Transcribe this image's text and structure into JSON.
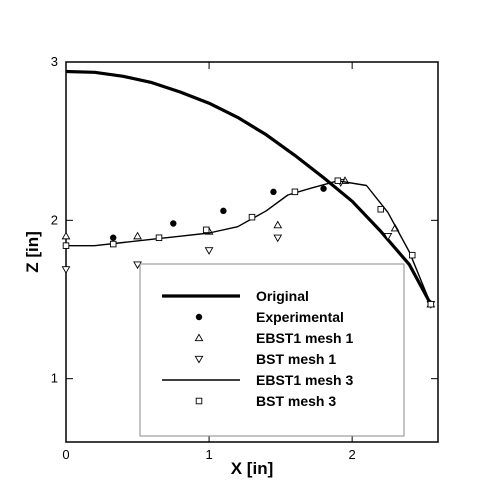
{
  "chart_data": {
    "type": "line",
    "xlabel": "X [in]",
    "ylabel": "Z [in]",
    "xlim": [
      0,
      2.6
    ],
    "ylim": [
      0.6,
      3.0
    ],
    "x_ticks": [
      0,
      1,
      2
    ],
    "y_ticks": [
      1,
      2,
      3
    ],
    "x_tick_labels": [
      "0",
      "1",
      "2"
    ],
    "y_tick_labels": [
      "1",
      "2",
      "3"
    ],
    "grid": false,
    "legend_placement": "lower-center",
    "series": [
      {
        "name": "Original",
        "kind": "line",
        "style": "thick",
        "points": [
          [
            0,
            2.94
          ],
          [
            0.2,
            2.935
          ],
          [
            0.4,
            2.91
          ],
          [
            0.6,
            2.87
          ],
          [
            0.8,
            2.81
          ],
          [
            1.0,
            2.74
          ],
          [
            1.2,
            2.65
          ],
          [
            1.4,
            2.54
          ],
          [
            1.6,
            2.41
          ],
          [
            1.8,
            2.27
          ],
          [
            2.0,
            2.12
          ],
          [
            2.2,
            1.93
          ],
          [
            2.4,
            1.72
          ],
          [
            2.55,
            1.47
          ]
        ]
      },
      {
        "name": "Experimental",
        "kind": "marker",
        "marker": "filled-circle",
        "points": [
          [
            0,
            1.84
          ],
          [
            0.33,
            1.89
          ],
          [
            0.75,
            1.98
          ],
          [
            1.1,
            2.06
          ],
          [
            1.45,
            2.18
          ],
          [
            1.8,
            2.2
          ],
          [
            2.55,
            1.47
          ]
        ]
      },
      {
        "name": "EBST1 mesh 1",
        "kind": "marker",
        "marker": "triangle-up",
        "points": [
          [
            0,
            1.9
          ],
          [
            0.5,
            1.9
          ],
          [
            1.0,
            1.93
          ],
          [
            1.48,
            1.97
          ],
          [
            1.95,
            2.25
          ],
          [
            2.3,
            1.95
          ],
          [
            2.55,
            1.47
          ]
        ]
      },
      {
        "name": "BST mesh 1",
        "kind": "marker",
        "marker": "triangle-down",
        "points": [
          [
            0,
            1.69
          ],
          [
            0.5,
            1.72
          ],
          [
            1.0,
            1.81
          ],
          [
            1.48,
            1.89
          ],
          [
            1.92,
            2.24
          ],
          [
            2.25,
            1.9
          ],
          [
            2.55,
            1.47
          ]
        ]
      },
      {
        "name": "EBST1 mesh 3",
        "kind": "line",
        "style": "thin",
        "points": [
          [
            0,
            1.84
          ],
          [
            0.2,
            1.84
          ],
          [
            0.4,
            1.86
          ],
          [
            0.6,
            1.88
          ],
          [
            0.8,
            1.9
          ],
          [
            1.0,
            1.92
          ],
          [
            1.2,
            1.96
          ],
          [
            1.4,
            2.06
          ],
          [
            1.55,
            2.16
          ],
          [
            1.7,
            2.2
          ],
          [
            1.9,
            2.25
          ],
          [
            2.1,
            2.22
          ],
          [
            2.25,
            2.05
          ],
          [
            2.4,
            1.8
          ],
          [
            2.55,
            1.47
          ]
        ]
      },
      {
        "name": "BST mesh 3",
        "kind": "marker",
        "marker": "open-square",
        "points": [
          [
            0,
            1.84
          ],
          [
            0.33,
            1.85
          ],
          [
            0.65,
            1.89
          ],
          [
            0.98,
            1.94
          ],
          [
            1.3,
            2.02
          ],
          [
            1.6,
            2.18
          ],
          [
            1.9,
            2.25
          ],
          [
            2.2,
            2.07
          ],
          [
            2.42,
            1.78
          ],
          [
            2.55,
            1.47
          ]
        ]
      }
    ]
  }
}
